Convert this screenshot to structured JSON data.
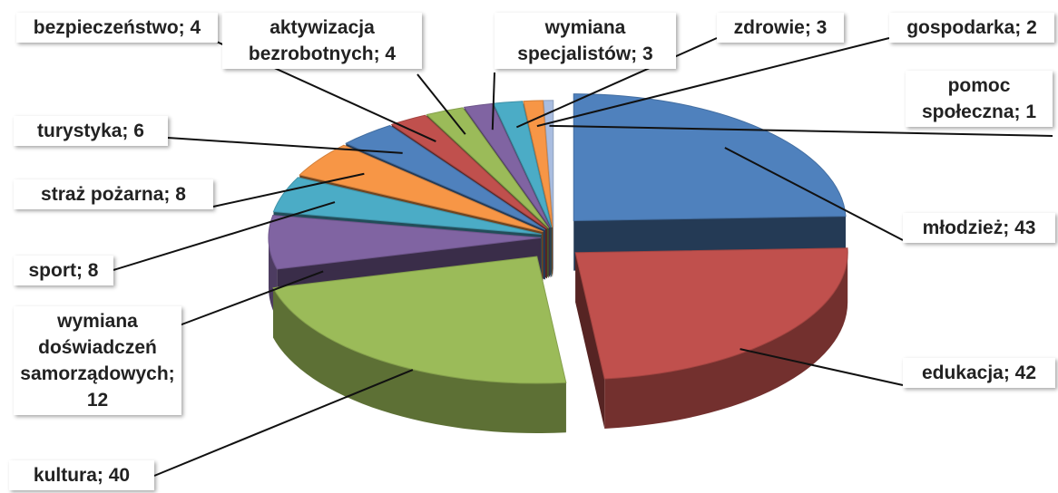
{
  "chart_data": {
    "type": "pie",
    "values": [
      43,
      42,
      40,
      12,
      8,
      8,
      6,
      4,
      4,
      3,
      3,
      2,
      1
    ],
    "value_labels": [
      "młodzież; 43",
      "edukacja; 42",
      "kultura; 40",
      "wymiana doświadczeń samorządowych; 12",
      "sport; 8",
      "straż pożarna; 8",
      "turystyka; 6",
      "bezpieczeństwo; 4",
      "aktywizacja bezrobotnych; 4",
      "wymiana specjalistów; 3",
      "zdrowie; 3",
      "gospodarka; 2",
      "pomoc społeczna; 1"
    ],
    "colors": [
      "#4f81bd",
      "#c0504d",
      "#9bbb59",
      "#8064a2",
      "#4bacc6",
      "#f79646",
      "#4f81bd",
      "#c0504d",
      "#9bbb59",
      "#8064a2",
      "#4bacc6",
      "#f79646",
      "#a9bde0"
    ]
  }
}
